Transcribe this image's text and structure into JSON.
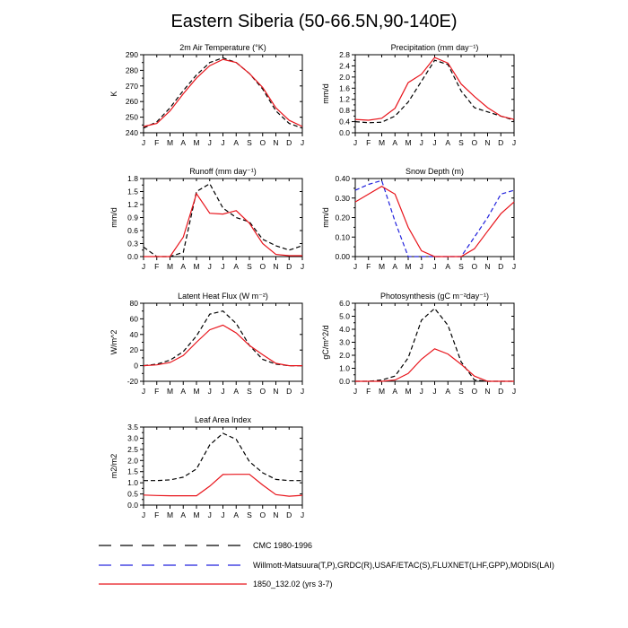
{
  "figure_title": "Eastern Siberia (50-66.5N,90-140E)",
  "months": [
    "J",
    "F",
    "M",
    "A",
    "M",
    "J",
    "J",
    "A",
    "S",
    "O",
    "N",
    "D",
    "J"
  ],
  "colors": {
    "black_series": "#000000",
    "blue_series": "#2222dd",
    "red_series": "#e8141b"
  },
  "legend": [
    {
      "label": "CMC 1980-1996",
      "style": "black-dashed"
    },
    {
      "label": "Willmott-Matsuura(T,P),GRDC(R),USAF/ETAC(S),FLUXNET(LHF,GPP),MODIS(LAI)",
      "style": "blue-dashed"
    },
    {
      "label": "1850_132.02 (yrs 3-7)",
      "style": "red-solid"
    }
  ],
  "chart_data": [
    {
      "type": "line",
      "title": "2m Air Temperature (°K)",
      "ylabel": "K",
      "ylim": [
        240,
        290
      ],
      "yticks": [
        "240",
        "250",
        "260",
        "270",
        "280",
        "290"
      ],
      "series": [
        {
          "style": "black-dashed",
          "values": [
            243,
            247,
            256,
            267,
            277,
            285,
            288,
            285,
            278,
            268,
            254,
            246,
            243
          ]
        },
        {
          "style": "red-solid",
          "values": [
            244,
            246,
            254,
            265,
            275,
            283,
            287,
            285,
            278,
            269,
            256,
            248,
            244
          ]
        }
      ]
    },
    {
      "type": "line",
      "title": "Precipitation (mm day⁻¹)",
      "ylabel": "mm/d",
      "ylim": [
        0,
        2.8
      ],
      "yticks": [
        "0.0",
        "0.4",
        "0.8",
        "1.2",
        "1.6",
        "2.0",
        "2.4",
        "2.8"
      ],
      "series": [
        {
          "style": "black-dashed",
          "values": [
            0.4,
            0.36,
            0.38,
            0.6,
            1.1,
            1.85,
            2.6,
            2.45,
            1.5,
            0.9,
            0.75,
            0.6,
            0.45
          ]
        },
        {
          "style": "red-solid",
          "values": [
            0.48,
            0.45,
            0.52,
            0.88,
            1.8,
            2.1,
            2.7,
            2.5,
            1.75,
            1.3,
            0.9,
            0.6,
            0.48
          ]
        }
      ]
    },
    {
      "type": "line",
      "title": "Runoff (mm day⁻¹)",
      "ylabel": "mm/d",
      "ylim": [
        0,
        1.8
      ],
      "yticks": [
        "0.0",
        "0.3",
        "0.6",
        "0.9",
        "1.2",
        "1.5",
        "1.8"
      ],
      "series": [
        {
          "style": "black-dashed",
          "values": [
            0.22,
            0.0,
            0.0,
            0.1,
            1.5,
            1.68,
            1.12,
            0.9,
            0.8,
            0.4,
            0.25,
            0.15,
            0.25
          ]
        },
        {
          "style": "red-solid",
          "values": [
            0.0,
            0.0,
            0.0,
            0.45,
            1.45,
            1.0,
            0.98,
            1.06,
            0.77,
            0.3,
            0.05,
            0.02,
            0.02
          ]
        }
      ]
    },
    {
      "type": "line",
      "title": "Snow Depth (m)",
      "ylabel": "mm/d",
      "ylim": [
        0,
        0.4
      ],
      "yticks": [
        "0.00",
        "0.10",
        "0.20",
        "0.30",
        "0.40"
      ],
      "series": [
        {
          "style": "blue-dashed",
          "values": [
            0.34,
            0.37,
            0.39,
            0.18,
            0.0,
            0.0,
            0.0,
            0.0,
            0.0,
            0.1,
            0.2,
            0.32,
            0.34
          ]
        },
        {
          "style": "red-solid",
          "values": [
            0.28,
            0.32,
            0.36,
            0.32,
            0.15,
            0.03,
            0.0,
            0.0,
            0.0,
            0.04,
            0.13,
            0.22,
            0.28
          ]
        }
      ]
    },
    {
      "type": "line",
      "title": "Latent Heat Flux (W m⁻²)",
      "ylabel": "W/m^2",
      "ylim": [
        -20,
        80
      ],
      "yticks": [
        "-20",
        "0",
        "20",
        "40",
        "60",
        "80"
      ],
      "series": [
        {
          "style": "black-dashed",
          "values": [
            0,
            2,
            7,
            18,
            38,
            66,
            70,
            54,
            26,
            8,
            2,
            0,
            0
          ]
        },
        {
          "style": "red-solid",
          "values": [
            0,
            1,
            4,
            13,
            30,
            46,
            52,
            42,
            26,
            14,
            3,
            0,
            0
          ]
        }
      ]
    },
    {
      "type": "line",
      "title": "Photosynthesis (gC m⁻²day⁻¹)",
      "ylabel": "gC/m^2/d",
      "ylim": [
        0,
        6
      ],
      "yticks": [
        "0.0",
        "1.0",
        "2.0",
        "3.0",
        "4.0",
        "5.0",
        "6.0"
      ],
      "series": [
        {
          "style": "black-dashed",
          "values": [
            0.0,
            0.0,
            0.1,
            0.4,
            1.8,
            4.7,
            5.6,
            4.3,
            1.5,
            0.1,
            0.0,
            0.0,
            0.0
          ]
        },
        {
          "style": "red-solid",
          "values": [
            0.0,
            0.0,
            0.0,
            0.1,
            0.6,
            1.7,
            2.5,
            2.1,
            1.3,
            0.4,
            0.0,
            0.0,
            0.0
          ]
        }
      ]
    },
    {
      "type": "line",
      "title": "Leaf Area Index",
      "ylabel": "m2/m2",
      "ylim": [
        0,
        3.5
      ],
      "yticks": [
        "0.0",
        "0.5",
        "1.0",
        "1.5",
        "2.0",
        "2.5",
        "3.0",
        "3.5"
      ],
      "series": [
        {
          "style": "black-dashed",
          "values": [
            1.1,
            1.1,
            1.13,
            1.25,
            1.62,
            2.7,
            3.22,
            2.95,
            1.95,
            1.45,
            1.15,
            1.1,
            1.1
          ]
        },
        {
          "style": "red-solid",
          "values": [
            0.45,
            0.43,
            0.42,
            0.42,
            0.42,
            0.85,
            1.37,
            1.38,
            1.38,
            0.9,
            0.47,
            0.4,
            0.44
          ]
        }
      ]
    }
  ]
}
